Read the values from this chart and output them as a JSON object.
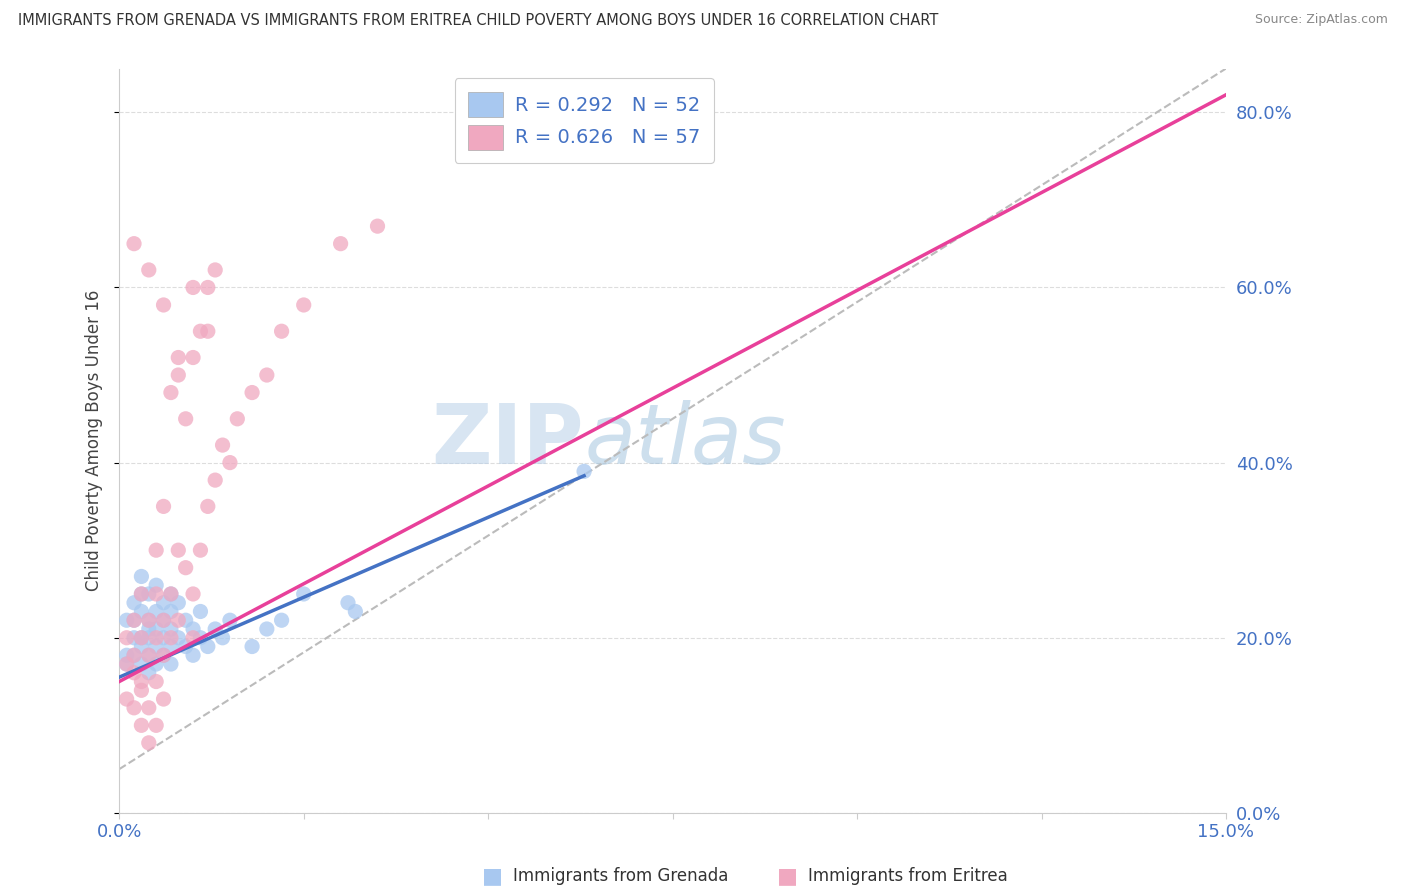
{
  "title": "IMMIGRANTS FROM GRENADA VS IMMIGRANTS FROM ERITREA CHILD POVERTY AMONG BOYS UNDER 16 CORRELATION CHART",
  "source": "Source: ZipAtlas.com",
  "ylabel": "Child Poverty Among Boys Under 16",
  "xlabel_grenada": "Immigrants from Grenada",
  "xlabel_eritrea": "Immigrants from Eritrea",
  "xlim": [
    0.0,
    0.15
  ],
  "ylim": [
    0.0,
    0.85
  ],
  "yticks": [
    0.0,
    0.2,
    0.4,
    0.6,
    0.8
  ],
  "ytick_labels": [
    "0.0%",
    "20.0%",
    "40.0%",
    "60.0%",
    "80.0%"
  ],
  "xtick_vals": [
    0.0,
    0.025,
    0.05,
    0.075,
    0.1,
    0.125,
    0.15
  ],
  "xtick_labels_show": {
    "0.0": "0.0%",
    "0.15": "15.0%"
  },
  "R_grenada": 0.292,
  "N_grenada": 52,
  "R_eritrea": 0.626,
  "N_eritrea": 57,
  "color_grenada": "#A8C8F0",
  "color_eritrea": "#F0A8C0",
  "line_color_grenada": "#4472C4",
  "line_color_eritrea": "#E8409A",
  "diagonal_color": "#BBBBBB",
  "background_color": "#FFFFFF",
  "grid_color": "#DDDDDD",
  "watermark_zip": "ZIP",
  "watermark_atlas": "atlas",
  "grenada_line_x0": 0.0,
  "grenada_line_y0": 0.155,
  "grenada_line_x1": 0.063,
  "grenada_line_y1": 0.385,
  "eritrea_line_x0": 0.0,
  "eritrea_line_y0": 0.15,
  "eritrea_line_x1": 0.15,
  "eritrea_line_y1": 0.82,
  "scatter_grenada_x": [
    0.001,
    0.001,
    0.001,
    0.002,
    0.002,
    0.002,
    0.002,
    0.003,
    0.003,
    0.003,
    0.003,
    0.003,
    0.003,
    0.004,
    0.004,
    0.004,
    0.004,
    0.004,
    0.004,
    0.005,
    0.005,
    0.005,
    0.005,
    0.005,
    0.006,
    0.006,
    0.006,
    0.006,
    0.007,
    0.007,
    0.007,
    0.007,
    0.007,
    0.008,
    0.008,
    0.009,
    0.009,
    0.01,
    0.01,
    0.011,
    0.011,
    0.012,
    0.013,
    0.014,
    0.015,
    0.018,
    0.02,
    0.022,
    0.025,
    0.031,
    0.063,
    0.032
  ],
  "scatter_grenada_y": [
    0.18,
    0.17,
    0.22,
    0.2,
    0.24,
    0.18,
    0.22,
    0.2,
    0.25,
    0.17,
    0.19,
    0.23,
    0.27,
    0.21,
    0.18,
    0.22,
    0.25,
    0.16,
    0.2,
    0.19,
    0.23,
    0.17,
    0.21,
    0.26,
    0.2,
    0.24,
    0.18,
    0.22,
    0.19,
    0.23,
    0.17,
    0.21,
    0.25,
    0.2,
    0.24,
    0.19,
    0.22,
    0.18,
    0.21,
    0.2,
    0.23,
    0.19,
    0.21,
    0.2,
    0.22,
    0.19,
    0.21,
    0.22,
    0.25,
    0.24,
    0.39,
    0.23
  ],
  "scatter_eritrea_x": [
    0.001,
    0.001,
    0.001,
    0.002,
    0.002,
    0.002,
    0.002,
    0.003,
    0.003,
    0.003,
    0.003,
    0.003,
    0.004,
    0.004,
    0.004,
    0.004,
    0.005,
    0.005,
    0.005,
    0.005,
    0.005,
    0.006,
    0.006,
    0.006,
    0.006,
    0.007,
    0.007,
    0.007,
    0.008,
    0.008,
    0.008,
    0.009,
    0.009,
    0.01,
    0.01,
    0.01,
    0.011,
    0.011,
    0.012,
    0.012,
    0.013,
    0.013,
    0.014,
    0.015,
    0.016,
    0.018,
    0.02,
    0.022,
    0.025,
    0.03,
    0.035,
    0.012,
    0.01,
    0.008,
    0.006,
    0.004,
    0.002
  ],
  "scatter_eritrea_y": [
    0.2,
    0.17,
    0.13,
    0.18,
    0.22,
    0.16,
    0.12,
    0.2,
    0.25,
    0.15,
    0.1,
    0.14,
    0.22,
    0.18,
    0.12,
    0.08,
    0.2,
    0.25,
    0.15,
    0.1,
    0.3,
    0.22,
    0.18,
    0.13,
    0.35,
    0.25,
    0.2,
    0.48,
    0.3,
    0.22,
    0.5,
    0.28,
    0.45,
    0.25,
    0.2,
    0.52,
    0.3,
    0.55,
    0.35,
    0.6,
    0.38,
    0.62,
    0.42,
    0.4,
    0.45,
    0.48,
    0.5,
    0.55,
    0.58,
    0.65,
    0.67,
    0.55,
    0.6,
    0.52,
    0.58,
    0.62,
    0.65
  ]
}
